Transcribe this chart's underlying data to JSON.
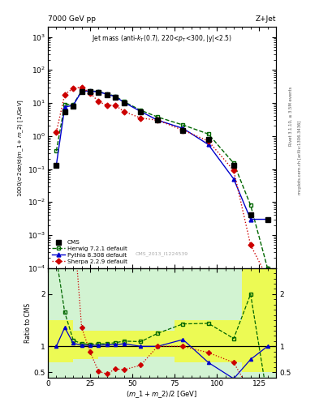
{
  "title_left": "7000 GeV pp",
  "title_right": "Z+Jet",
  "annotation": "Jet mass (anti-k_{T}(0.7), 220<p_{T}<300, |y|<2.5)",
  "watermark": "CMS_2013_I1224539",
  "ylabel_main": "1000/σ 2dσ/d(m_1 + m_2) [1/GeV]",
  "ylabel_ratio": "Ratio to CMS",
  "xlabel": "(m_1 + m_2) / 2 [GeV]",
  "right_label1": "Rivet 3.1.10, ≥ 3.5M events",
  "right_label2": "mcplots.cern.ch [arXiv:1306.3436]",
  "cms_x": [
    5,
    10,
    15,
    20,
    25,
    30,
    35,
    40,
    45,
    55,
    65,
    80,
    95,
    110,
    120,
    130
  ],
  "cms_y": [
    0.13,
    5.5,
    8.0,
    22.0,
    22.5,
    21.0,
    18.0,
    15.0,
    10.0,
    5.5,
    3.0,
    1.5,
    0.8,
    0.13,
    0.004,
    0.003
  ],
  "herwig_x": [
    5,
    10,
    15,
    20,
    25,
    30,
    35,
    40,
    45,
    55,
    65,
    80,
    95,
    110,
    120,
    130
  ],
  "herwig_y": [
    0.35,
    9.0,
    9.0,
    23.0,
    23.5,
    22.0,
    19.0,
    16.0,
    11.0,
    6.0,
    3.75,
    2.15,
    1.15,
    0.15,
    0.008,
    0.0001
  ],
  "pythia_x": [
    5,
    10,
    15,
    20,
    25,
    30,
    35,
    40,
    45,
    55,
    65,
    80,
    95,
    110,
    120,
    130
  ],
  "pythia_y": [
    0.13,
    7.5,
    8.5,
    22.5,
    23.0,
    21.5,
    18.5,
    15.5,
    10.5,
    5.5,
    3.0,
    1.7,
    0.55,
    0.05,
    0.003,
    0.003
  ],
  "sherpa_x": [
    5,
    10,
    15,
    20,
    25,
    30,
    35,
    40,
    45,
    55,
    65,
    80,
    95,
    110,
    120,
    130
  ],
  "sherpa_y": [
    1.3,
    18.0,
    28.0,
    30.0,
    20.0,
    11.0,
    8.5,
    8.5,
    5.5,
    3.5,
    3.0,
    1.5,
    0.7,
    0.09,
    0.0005,
    5e-05
  ],
  "r_herwig_x": [
    5,
    10,
    15,
    20,
    25,
    30,
    35,
    40,
    45,
    55,
    65,
    80,
    95,
    110,
    120,
    130
  ],
  "r_herwig_y": [
    2.7,
    1.65,
    1.12,
    1.05,
    1.04,
    1.05,
    1.05,
    1.07,
    1.1,
    1.09,
    1.25,
    1.43,
    1.44,
    1.15,
    2.0,
    0.0
  ],
  "r_pythia_x": [
    5,
    10,
    15,
    20,
    25,
    30,
    35,
    40,
    45,
    55,
    65,
    80,
    95,
    110,
    120,
    130
  ],
  "r_pythia_y": [
    1.0,
    1.36,
    1.06,
    1.02,
    1.02,
    1.02,
    1.03,
    1.03,
    1.05,
    1.0,
    1.0,
    1.13,
    0.69,
    0.38,
    0.75,
    1.0
  ],
  "r_sherpa_x": [
    5,
    10,
    15,
    20,
    25,
    30,
    35,
    40,
    45,
    55,
    65,
    80,
    95,
    110,
    120,
    130
  ],
  "r_sherpa_y": [
    10.0,
    3.3,
    3.5,
    1.36,
    0.89,
    0.52,
    0.47,
    0.57,
    0.55,
    0.64,
    1.0,
    1.0,
    0.88,
    0.69,
    0.125,
    0.017
  ],
  "yellow_x_edges": [
    0,
    15,
    30,
    75,
    115,
    135
  ],
  "yellow_lo": [
    0.7,
    0.75,
    0.8,
    0.7,
    0.5,
    0.5
  ],
  "yellow_hi": [
    1.5,
    1.3,
    1.3,
    1.5,
    2.5,
    2.5
  ],
  "cms_color": "#000000",
  "herwig_color": "#006600",
  "pythia_color": "#0000cc",
  "sherpa_color": "#cc0000",
  "ylim_main": [
    0.0001,
    2000.0
  ],
  "ylim_ratio": [
    0.4,
    2.5
  ],
  "xlim": [
    0,
    135
  ]
}
